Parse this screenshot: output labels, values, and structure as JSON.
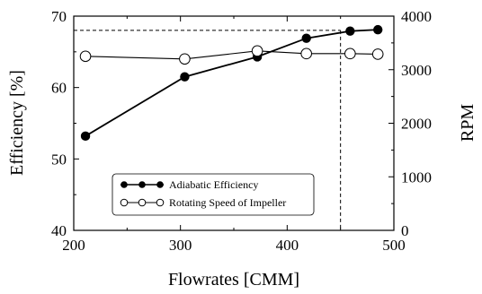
{
  "chart_data": {
    "type": "line",
    "xlabel": "Flowrates [CMM]",
    "ylabel_left": "Efficiency [%]",
    "ylabel_right": "RPM",
    "xlim": [
      200,
      500
    ],
    "ylim_left": [
      40,
      70
    ],
    "ylim_right": [
      0,
      4000
    ],
    "x_ticks": [
      200,
      300,
      400,
      500
    ],
    "y_left_ticks": [
      40,
      50,
      60,
      70
    ],
    "y_right_ticks": [
      0,
      1000,
      2000,
      3000,
      4000
    ],
    "grid": false,
    "legend_position": "bottom-center",
    "series": [
      {
        "name": "Adiabatic Efficiency",
        "axis": "left",
        "marker": "filled-circle",
        "color": "#000000",
        "x": [
          211,
          304,
          372,
          418,
          459,
          485
        ],
        "y": [
          53.2,
          61.5,
          64.3,
          66.9,
          67.9,
          68.1
        ]
      },
      {
        "name": "Rotating Speed of Impeller",
        "axis": "right",
        "marker": "open-circle",
        "color": "#000000",
        "x": [
          211,
          304,
          372,
          418,
          459,
          485
        ],
        "y": [
          3250,
          3200,
          3350,
          3300,
          3300,
          3290
        ]
      }
    ],
    "reference_lines": [
      {
        "style": "dashed",
        "x": 450,
        "y_left": 68
      }
    ]
  }
}
